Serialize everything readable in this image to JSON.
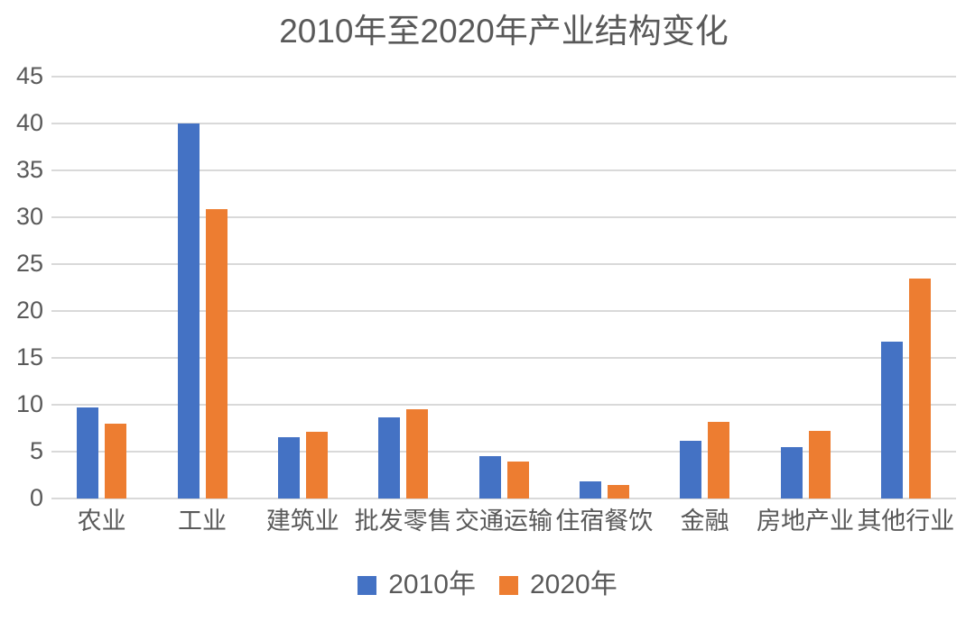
{
  "chart_data": {
    "type": "bar",
    "title": "2010年至2020年产业结构变化",
    "categories": [
      "农业",
      "工业",
      "建筑业",
      "批发零售",
      "交通运输",
      "住宿餐饮",
      "金融",
      "房地产业",
      "其他行业"
    ],
    "series": [
      {
        "name": "2010年",
        "color": "#4472C4",
        "values": [
          9.7,
          40.0,
          6.5,
          8.7,
          4.5,
          1.8,
          6.2,
          5.5,
          16.7
        ]
      },
      {
        "name": "2020年",
        "color": "#ED7D31",
        "values": [
          8.0,
          30.9,
          7.1,
          9.5,
          3.9,
          1.4,
          8.2,
          7.2,
          23.5
        ]
      }
    ],
    "xlabel": "",
    "ylabel": "",
    "ylim": [
      0,
      45
    ],
    "yticks": [
      0,
      5,
      10,
      15,
      20,
      25,
      30,
      35,
      40,
      45
    ],
    "grid": true,
    "legend_position": "bottom",
    "colors": {
      "text": "#595959",
      "gridline": "#d9d9d9",
      "background": "#ffffff"
    }
  }
}
